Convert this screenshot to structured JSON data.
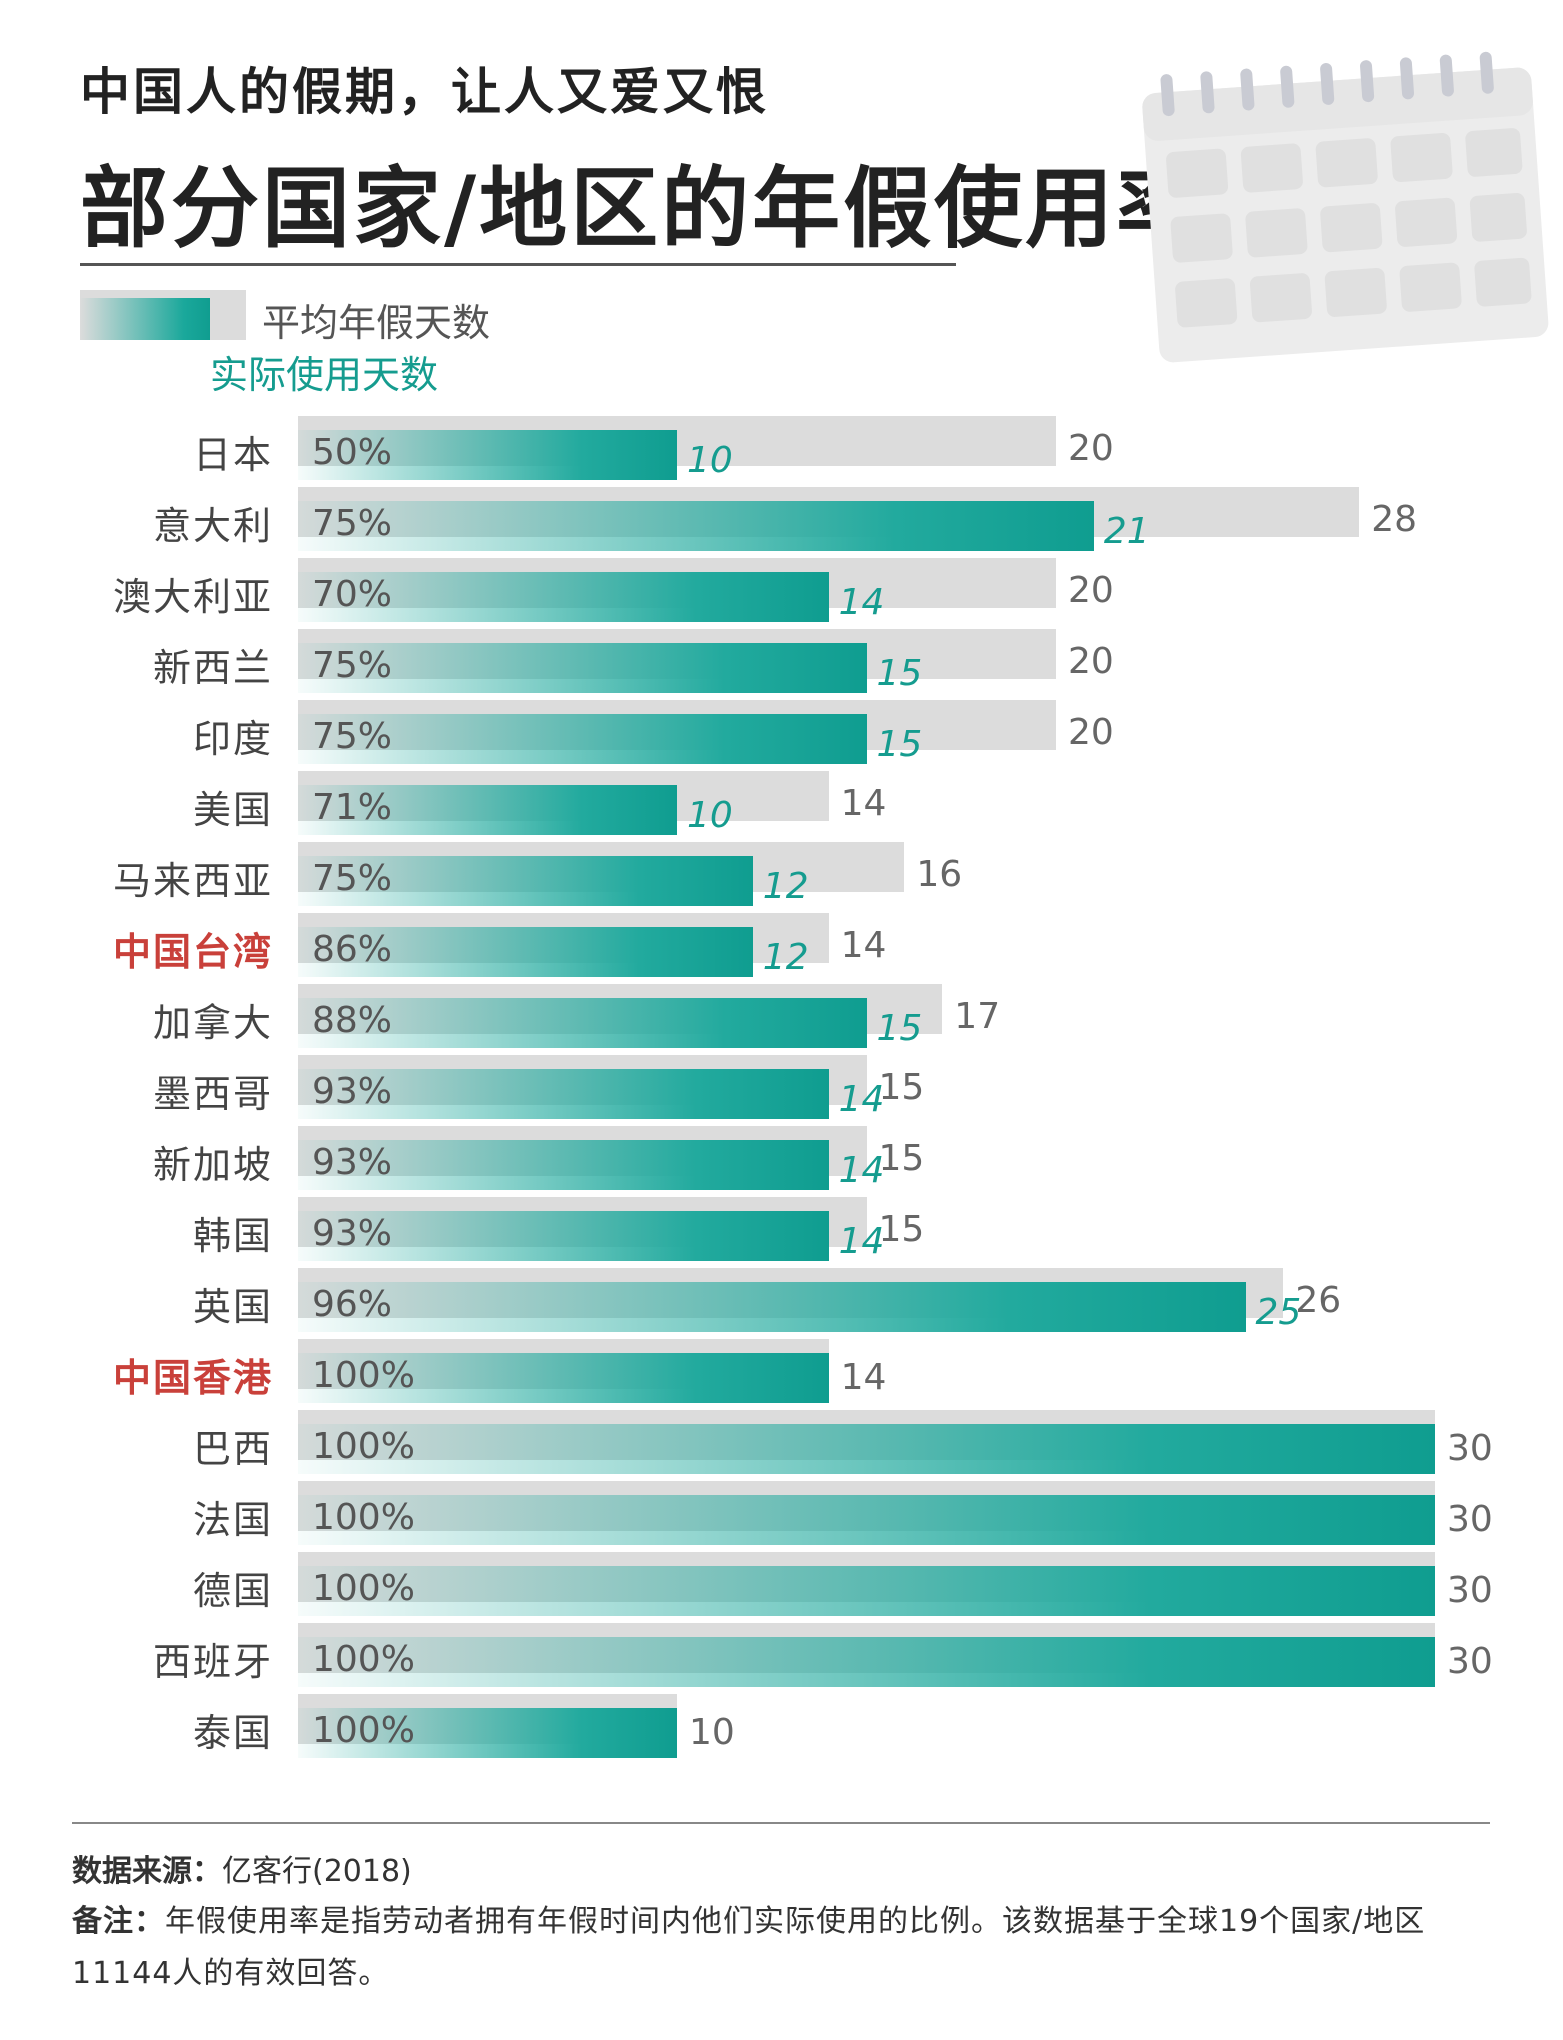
{
  "header": {
    "kicker": "中国人的假期，让人又爱又恨",
    "title": "部分国家/地区的年假使用率"
  },
  "legend": {
    "total_label": "平均年假天数",
    "used_label": "实际使用天数"
  },
  "colors": {
    "accent": "#109d90",
    "highlight": "#c9403a",
    "total_bar": "#dcdcdc"
  },
  "chart_data": {
    "type": "bar",
    "orientation": "horizontal",
    "categories": [
      "日本",
      "意大利",
      "澳大利亚",
      "新西兰",
      "印度",
      "美国",
      "马来西亚",
      "中国台湾",
      "加拿大",
      "墨西哥",
      "新加坡",
      "韩国",
      "英国",
      "中国香港",
      "巴西",
      "法国",
      "德国",
      "西班牙",
      "泰国"
    ],
    "highlighted": [
      "中国台湾",
      "中国香港"
    ],
    "series": [
      {
        "name": "平均年假天数",
        "values": [
          20,
          28,
          20,
          20,
          20,
          14,
          16,
          14,
          17,
          15,
          15,
          15,
          26,
          14,
          30,
          30,
          30,
          30,
          10
        ]
      },
      {
        "name": "实际使用天数",
        "values": [
          10,
          21,
          14,
          15,
          15,
          10,
          12,
          12,
          15,
          14,
          14,
          14,
          25,
          14,
          30,
          30,
          30,
          30,
          10
        ]
      }
    ],
    "usage_rate_labels": [
      "50%",
      "75%",
      "70%",
      "75%",
      "75%",
      "71%",
      "75%",
      "86%",
      "88%",
      "93%",
      "93%",
      "93%",
      "96%",
      "100%",
      "100%",
      "100%",
      "100%",
      "100%",
      "100%"
    ],
    "xlim": [
      0,
      30
    ],
    "grid": false
  },
  "footer": {
    "source_label": "数据来源：",
    "source_text": "亿客行(2018)",
    "note_label": "备注：",
    "note_text": "年假使用率是指劳动者拥有年假时间内他们实际使用的比例。该数据基于全球19个国家/地区11144人的有效回答。"
  }
}
